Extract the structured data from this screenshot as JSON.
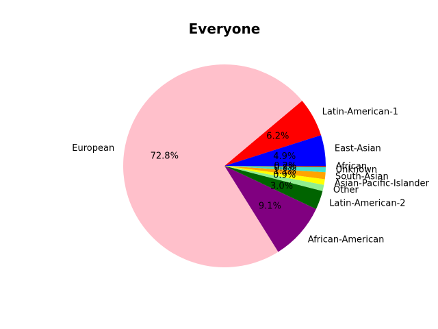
{
  "chart_data": {
    "type": "pie",
    "title": "Everyone",
    "slices": [
      {
        "label": "East-Asian",
        "value": 4.9,
        "pct_text": "4.9%",
        "color": "#0000ff"
      },
      {
        "label": "Latin-American-1",
        "value": 6.2,
        "pct_text": "6.2%",
        "color": "#ff0000"
      },
      {
        "label": "European",
        "value": 72.8,
        "pct_text": "72.8%",
        "color": "#ffc0cb"
      },
      {
        "label": "African-American",
        "value": 9.1,
        "pct_text": "9.1%",
        "color": "#800080"
      },
      {
        "label": "Latin-American-2",
        "value": 3.0,
        "pct_text": "3.0%",
        "color": "#006400"
      },
      {
        "label": "Other",
        "value": 1.0,
        "pct_text": "",
        "color": "#90ee90"
      },
      {
        "label": "Asian-Pacific-Islander",
        "value": 0.9,
        "pct_text": "0.9%",
        "color": "#ffff00"
      },
      {
        "label": "South-Asian",
        "value": 1.1,
        "pct_text": "1.1%",
        "color": "#ffa500"
      },
      {
        "label": "Unknown",
        "value": 0.8,
        "pct_text": "0.8%",
        "color": "#40e0d0"
      },
      {
        "label": "African",
        "value": 0.2,
        "pct_text": "0.2%",
        "color": "#a52a2a"
      }
    ],
    "start_angle_deg": 0,
    "direction": "counterclockwise"
  }
}
